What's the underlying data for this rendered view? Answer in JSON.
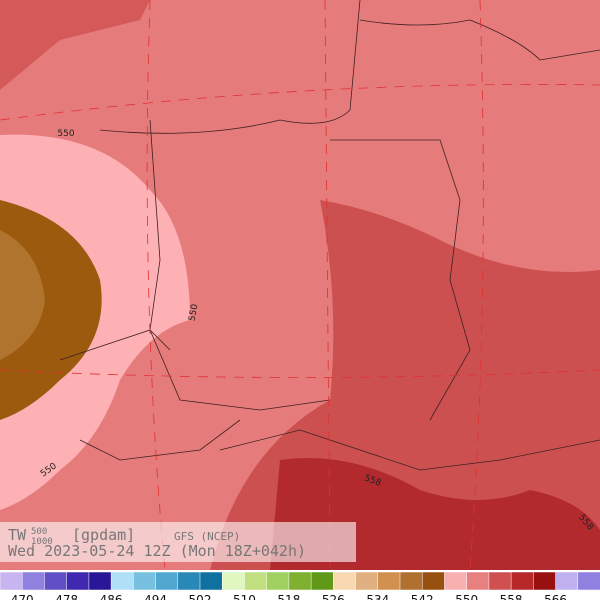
{
  "legend": {
    "variable": "TW",
    "superscript": "500",
    "subscript": "1000",
    "unit": "[gpdam]",
    "model": "GFS (NCEP)",
    "time": "Wed 2023-05-24 12Z (Mon 18Z+042h)"
  },
  "contour_labels": [
    "550",
    "550",
    "550",
    "558",
    "558"
  ],
  "colorbar": {
    "colors": [
      "#c8b4f0",
      "#9080e0",
      "#6050c8",
      "#4028b0",
      "#281898",
      "#b0e0f8",
      "#78c0e0",
      "#50a8d0",
      "#2888b8",
      "#1070a0",
      "#e0f8c0",
      "#c0e080",
      "#a0d060",
      "#80b030",
      "#609818",
      "#f8d8b0",
      "#e0b080",
      "#d09050",
      "#b07030",
      "#985010",
      "#f8b0b0",
      "#e88080",
      "#d05050",
      "#b82828",
      "#981010",
      "#c0b0f0",
      "#9080e0"
    ],
    "labels": [
      470,
      478,
      486,
      494,
      502,
      510,
      518,
      526,
      534,
      542,
      550,
      558,
      566
    ]
  }
}
